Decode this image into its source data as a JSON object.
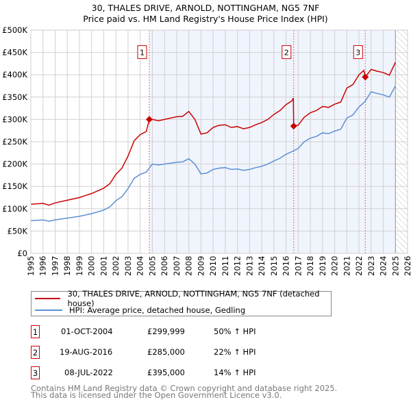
{
  "chart_data": {
    "type": "line",
    "title": "30, THALES DRIVE, ARNOLD, NOTTINGHAM, NG5 7NF",
    "subtitle": "Price paid vs. HM Land Registry's House Price Index (HPI)",
    "xlim": [
      1995,
      2026
    ],
    "ylim": [
      0,
      500000
    ],
    "x_ticks": [
      "1995",
      "1996",
      "1997",
      "1998",
      "1999",
      "2000",
      "2001",
      "2002",
      "2003",
      "2004",
      "2005",
      "2006",
      "2007",
      "2008",
      "2009",
      "2010",
      "2011",
      "2012",
      "2013",
      "2014",
      "2015",
      "2016",
      "2017",
      "2018",
      "2019",
      "2020",
      "2021",
      "2022",
      "2023",
      "2024",
      "2025",
      "2026"
    ],
    "y_ticks": [
      {
        "value": 0,
        "label": "£0"
      },
      {
        "value": 50000,
        "label": "£50K"
      },
      {
        "value": 100000,
        "label": "£100K"
      },
      {
        "value": 150000,
        "label": "£150K"
      },
      {
        "value": 200000,
        "label": "£200K"
      },
      {
        "value": 250000,
        "label": "£250K"
      },
      {
        "value": 300000,
        "label": "£300K"
      },
      {
        "value": 350000,
        "label": "£350K"
      },
      {
        "value": 400000,
        "label": "£400K"
      },
      {
        "value": 450000,
        "label": "£450K"
      },
      {
        "value": 500000,
        "label": "£500K"
      }
    ],
    "grid": true,
    "shaded_from": 2004.75,
    "hatched_from": 2025.0,
    "series": [
      {
        "name": "30, THALES DRIVE, ARNOLD, NOTTINGHAM, NG5 7NF (detached house)",
        "color": "#cc0000",
        "x": [
          1995,
          1996,
          1996.5,
          1997,
          1998,
          1999,
          2000,
          2001,
          2001.5,
          2002,
          2002.5,
          2003,
          2003.5,
          2004,
          2004.5,
          2004.75,
          2005,
          2005.5,
          2006,
          2007,
          2007.5,
          2008,
          2008.5,
          2009,
          2009.5,
          2010,
          2010.5,
          2011,
          2011.5,
          2012,
          2012.5,
          2013,
          2013.5,
          2014,
          2014.5,
          2015,
          2015.5,
          2016,
          2016.5,
          2016.6,
          2016.63,
          2017,
          2017.5,
          2018,
          2018.5,
          2019,
          2019.5,
          2020,
          2020.5,
          2021,
          2021.5,
          2022,
          2022.4,
          2022.52,
          2023,
          2023.5,
          2024,
          2024.5,
          2025
        ],
        "y": [
          110000,
          112000,
          108000,
          113000,
          119000,
          125000,
          134000,
          146000,
          156000,
          177000,
          191000,
          218000,
          252000,
          266000,
          273000,
          300000,
          300000,
          297000,
          300000,
          306000,
          307000,
          318000,
          300000,
          267000,
          270000,
          282000,
          287000,
          288000,
          282000,
          284000,
          279000,
          282000,
          288000,
          293000,
          300000,
          311000,
          320000,
          333000,
          342000,
          348000,
          285000,
          287000,
          305000,
          315000,
          320000,
          329000,
          327000,
          334000,
          339000,
          370000,
          378000,
          400000,
          410000,
          395000,
          412000,
          408000,
          405000,
          399000,
          428000
        ]
      },
      {
        "name": "HPI: Average price, detached house, Gedling",
        "color": "#5b8fd4",
        "x": [
          1995,
          1996,
          1996.5,
          1997,
          1998,
          1999,
          2000,
          2001,
          2001.5,
          2002,
          2002.5,
          2003,
          2003.5,
          2004,
          2004.5,
          2005,
          2005.5,
          2006,
          2007,
          2007.5,
          2008,
          2008.5,
          2009,
          2009.5,
          2010,
          2010.5,
          2011,
          2011.5,
          2012,
          2012.5,
          2013,
          2013.5,
          2014,
          2014.5,
          2015,
          2015.5,
          2016,
          2016.5,
          2017,
          2017.5,
          2018,
          2018.5,
          2019,
          2019.5,
          2020,
          2020.5,
          2021,
          2021.5,
          2022,
          2022.5,
          2023,
          2023.5,
          2024,
          2024.5,
          2025
        ],
        "y": [
          73000,
          75000,
          72000,
          75000,
          79000,
          83000,
          89000,
          97000,
          104000,
          118000,
          127000,
          145000,
          168000,
          177000,
          182000,
          200000,
          198000,
          200000,
          204000,
          205000,
          212000,
          200000,
          178000,
          180000,
          188000,
          191000,
          192000,
          188000,
          189000,
          186000,
          188000,
          192000,
          195000,
          200000,
          207000,
          213000,
          222000,
          228000,
          235000,
          250000,
          258000,
          262000,
          270000,
          268000,
          274000,
          278000,
          303000,
          310000,
          328000,
          340000,
          362000,
          358000,
          355000,
          350000,
          375000
        ]
      }
    ],
    "sales": [
      {
        "label": "1",
        "x": 2004.75,
        "price": 299999,
        "date": "01-OCT-2004",
        "price_text": "£299,999",
        "hpi_text": "50% ↑ HPI"
      },
      {
        "label": "2",
        "x": 2016.63,
        "price": 285000,
        "date": "19-AUG-2016",
        "price_text": "£285,000",
        "hpi_text": "22% ↑ HPI"
      },
      {
        "label": "3",
        "x": 2022.52,
        "price": 395000,
        "date": "08-JUL-2022",
        "price_text": "£395,000",
        "hpi_text": "14% ↑ HPI"
      }
    ]
  },
  "footer": {
    "line1": "Contains HM Land Registry data © Crown copyright and database right 2025.",
    "line2": "This data is licensed under the Open Government Licence v3.0."
  }
}
